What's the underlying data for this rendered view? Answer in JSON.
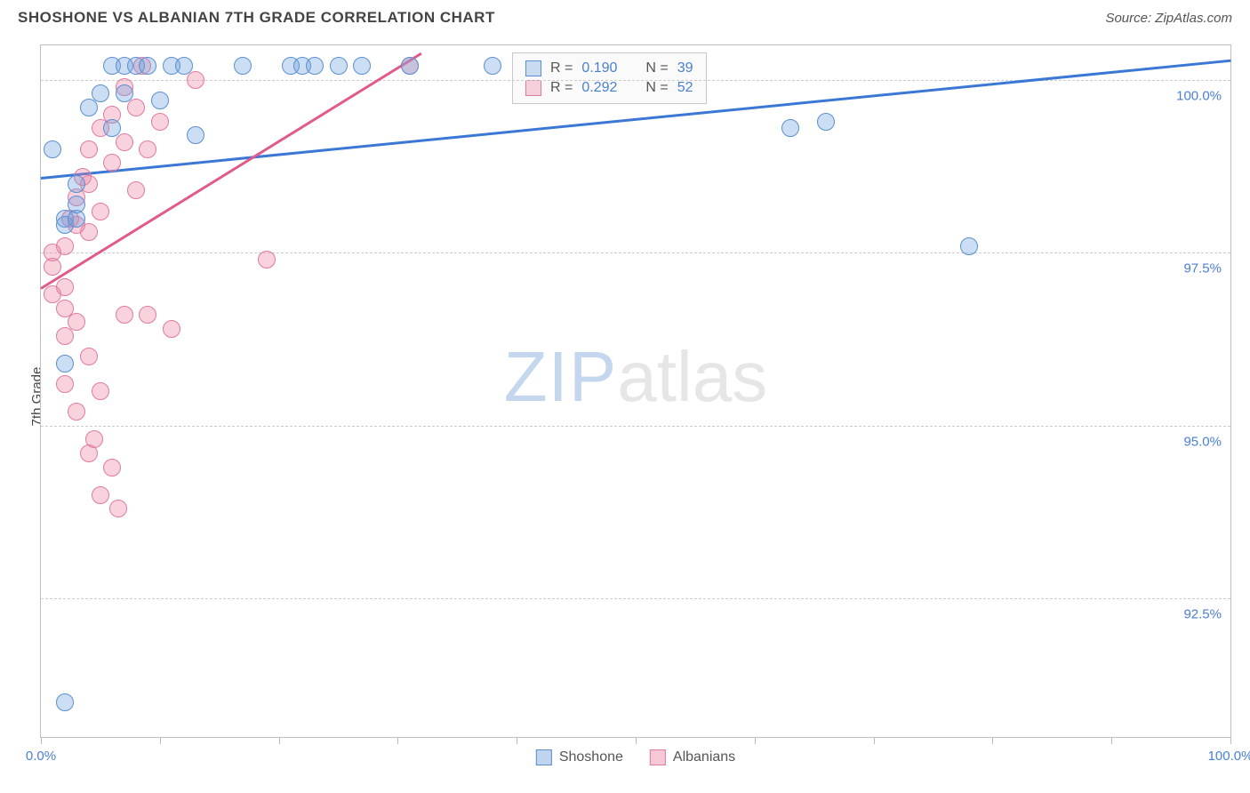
{
  "header": {
    "title": "SHOSHONE VS ALBANIAN 7TH GRADE CORRELATION CHART",
    "source": "Source: ZipAtlas.com"
  },
  "axis": {
    "ylabel": "7th Grade",
    "x_min_label": "0.0%",
    "x_max_label": "100.0%",
    "ylim": [
      90.5,
      100.5
    ],
    "xlim": [
      0,
      100
    ],
    "yticks": [
      {
        "v": 100.0,
        "label": "100.0%"
      },
      {
        "v": 97.5,
        "label": "97.5%"
      },
      {
        "v": 95.0,
        "label": "95.0%"
      },
      {
        "v": 92.5,
        "label": "92.5%"
      }
    ],
    "xticks": [
      0,
      10,
      20,
      30,
      40,
      50,
      60,
      70,
      80,
      90,
      100
    ]
  },
  "watermark": {
    "part1": "ZIP",
    "part2": "atlas"
  },
  "series": {
    "shoshone": {
      "label": "Shoshone",
      "fill": "rgba(110,160,220,0.35)",
      "stroke": "#5a8fd0",
      "marker_radius": 10,
      "trend": {
        "x1": 0,
        "y1": 98.6,
        "x2": 100,
        "y2": 100.3,
        "color": "#3b78d6",
        "width": 3
      },
      "stats": {
        "r_label": "R =",
        "r_val": "0.190",
        "n_label": "N =",
        "n_val": "39"
      },
      "points": [
        [
          1,
          99.0
        ],
        [
          2,
          98.0
        ],
        [
          2,
          97.9
        ],
        [
          3,
          98.2
        ],
        [
          3,
          98.5
        ],
        [
          3,
          98.0
        ],
        [
          4,
          99.6
        ],
        [
          5,
          99.8
        ],
        [
          6,
          100.2
        ],
        [
          6,
          99.3
        ],
        [
          7,
          100.2
        ],
        [
          7,
          99.8
        ],
        [
          8,
          100.2
        ],
        [
          9,
          100.2
        ],
        [
          10,
          99.7
        ],
        [
          11,
          100.2
        ],
        [
          12,
          100.2
        ],
        [
          13,
          99.2
        ],
        [
          17,
          100.2
        ],
        [
          21,
          100.2
        ],
        [
          22,
          100.2
        ],
        [
          23,
          100.2
        ],
        [
          25,
          100.2
        ],
        [
          27,
          100.2
        ],
        [
          31,
          100.2
        ],
        [
          38,
          100.2
        ],
        [
          63,
          99.3
        ],
        [
          66,
          99.4
        ],
        [
          78,
          97.6
        ],
        [
          2,
          95.9
        ],
        [
          2,
          91.0
        ]
      ]
    },
    "albanians": {
      "label": "Albanians",
      "fill": "rgba(235,130,160,0.35)",
      "stroke": "#e07ba0",
      "marker_radius": 10,
      "trend": {
        "x1": 0,
        "y1": 97.0,
        "x2": 32,
        "y2": 100.4,
        "color": "#e05a8c",
        "width": 3
      },
      "stats": {
        "r_label": "R =",
        "r_val": "0.292",
        "n_label": "N =",
        "n_val": "52"
      },
      "points": [
        [
          1,
          97.5
        ],
        [
          1,
          97.3
        ],
        [
          1,
          96.9
        ],
        [
          2,
          97.6
        ],
        [
          2,
          97.0
        ],
        [
          2,
          96.7
        ],
        [
          2,
          96.3
        ],
        [
          2,
          95.6
        ],
        [
          2.5,
          98.0
        ],
        [
          3,
          98.3
        ],
        [
          3,
          97.9
        ],
        [
          3,
          96.5
        ],
        [
          3,
          95.2
        ],
        [
          3.5,
          98.6
        ],
        [
          4,
          99.0
        ],
        [
          4,
          98.5
        ],
        [
          4,
          97.8
        ],
        [
          4,
          96.0
        ],
        [
          4,
          94.6
        ],
        [
          4.5,
          94.8
        ],
        [
          5,
          99.3
        ],
        [
          5,
          98.1
        ],
        [
          5,
          95.5
        ],
        [
          5,
          94.0
        ],
        [
          6,
          99.5
        ],
        [
          6,
          98.8
        ],
        [
          6,
          94.4
        ],
        [
          6.5,
          93.8
        ],
        [
          7,
          99.9
        ],
        [
          7,
          99.1
        ],
        [
          7,
          96.6
        ],
        [
          8,
          99.6
        ],
        [
          8,
          98.4
        ],
        [
          8.5,
          100.2
        ],
        [
          9,
          99.0
        ],
        [
          9,
          96.6
        ],
        [
          10,
          99.4
        ],
        [
          11,
          96.4
        ],
        [
          13,
          100.0
        ],
        [
          19,
          97.4
        ],
        [
          31,
          100.2
        ]
      ]
    }
  },
  "legend": {
    "items": [
      {
        "label": "Shoshone",
        "fill": "rgba(110,160,220,0.45)",
        "stroke": "#5a8fd0"
      },
      {
        "label": "Albanians",
        "fill": "rgba(235,130,160,0.45)",
        "stroke": "#e07ba0"
      }
    ]
  }
}
